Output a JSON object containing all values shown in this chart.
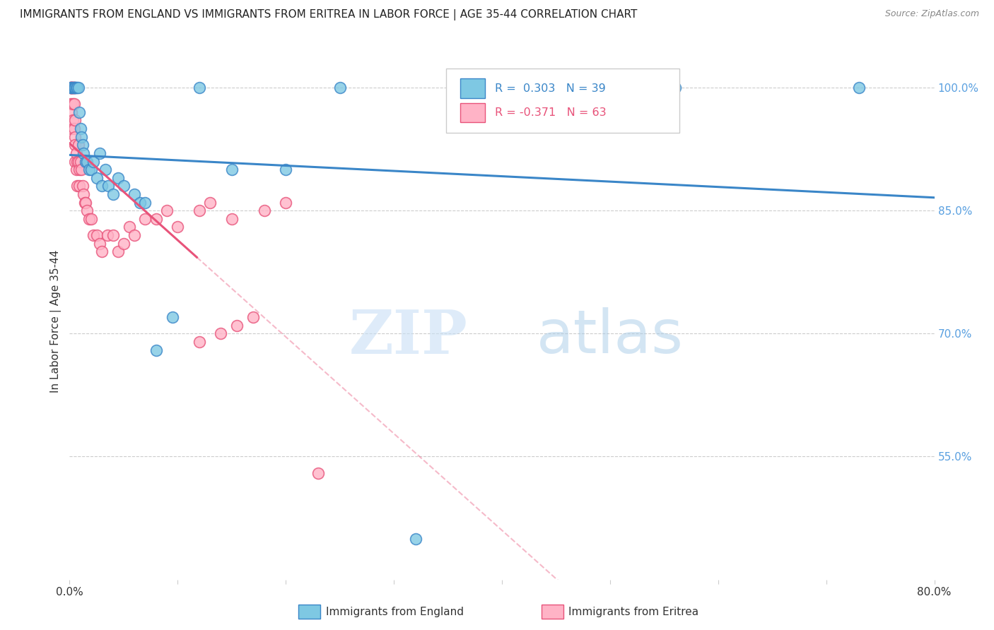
{
  "title": "IMMIGRANTS FROM ENGLAND VS IMMIGRANTS FROM ERITREA IN LABOR FORCE | AGE 35-44 CORRELATION CHART",
  "source": "Source: ZipAtlas.com",
  "ylabel": "In Labor Force | Age 35-44",
  "watermark_zip": "ZIP",
  "watermark_atlas": "atlas",
  "legend_england": "Immigrants from England",
  "legend_eritrea": "Immigrants from Eritrea",
  "R_england": 0.303,
  "N_england": 39,
  "R_eritrea": -0.371,
  "N_eritrea": 63,
  "x_min": 0.0,
  "x_max": 0.8,
  "y_min": 0.4,
  "y_max": 1.03,
  "y_ticks": [
    0.55,
    0.7,
    0.85,
    1.0
  ],
  "y_tick_labels": [
    "55.0%",
    "70.0%",
    "85.0%",
    "100.0%"
  ],
  "x_ticks": [
    0.0,
    0.1,
    0.2,
    0.3,
    0.4,
    0.5,
    0.6,
    0.7,
    0.8
  ],
  "x_tick_labels": [
    "0.0%",
    "",
    "",
    "",
    "",
    "",
    "",
    "",
    "80.0%"
  ],
  "color_england": "#7ec8e3",
  "color_eritrea": "#ffb3c6",
  "color_england_line": "#3a86c8",
  "color_eritrea_line": "#e8537a",
  "england_x": [
    0.001,
    0.002,
    0.003,
    0.004,
    0.005,
    0.005,
    0.006,
    0.007,
    0.008,
    0.009,
    0.01,
    0.011,
    0.012,
    0.013,
    0.015,
    0.016,
    0.018,
    0.02,
    0.022,
    0.025,
    0.028,
    0.03,
    0.033,
    0.036,
    0.04,
    0.045,
    0.05,
    0.06,
    0.065,
    0.07,
    0.08,
    0.095,
    0.12,
    0.15,
    0.2,
    0.25,
    0.32,
    0.56,
    0.73
  ],
  "england_y": [
    1.0,
    1.0,
    1.0,
    1.0,
    1.0,
    1.0,
    1.0,
    1.0,
    1.0,
    0.97,
    0.95,
    0.94,
    0.93,
    0.92,
    0.91,
    0.91,
    0.9,
    0.9,
    0.91,
    0.89,
    0.92,
    0.88,
    0.9,
    0.88,
    0.87,
    0.89,
    0.88,
    0.87,
    0.86,
    0.86,
    0.68,
    0.72,
    1.0,
    0.9,
    0.9,
    1.0,
    0.45,
    1.0,
    1.0
  ],
  "eritrea_x": [
    0.001,
    0.001,
    0.001,
    0.001,
    0.002,
    0.002,
    0.002,
    0.002,
    0.002,
    0.003,
    0.003,
    0.003,
    0.003,
    0.003,
    0.004,
    0.004,
    0.004,
    0.004,
    0.005,
    0.005,
    0.005,
    0.005,
    0.006,
    0.006,
    0.007,
    0.007,
    0.008,
    0.008,
    0.009,
    0.009,
    0.01,
    0.011,
    0.012,
    0.013,
    0.014,
    0.015,
    0.016,
    0.018,
    0.02,
    0.022,
    0.025,
    0.028,
    0.03,
    0.035,
    0.04,
    0.045,
    0.05,
    0.055,
    0.06,
    0.07,
    0.08,
    0.09,
    0.1,
    0.12,
    0.13,
    0.15,
    0.18,
    0.2,
    0.23,
    0.155,
    0.17,
    0.14,
    0.12
  ],
  "eritrea_y": [
    1.0,
    1.0,
    1.0,
    0.98,
    1.0,
    1.0,
    1.0,
    0.97,
    0.95,
    1.0,
    1.0,
    1.0,
    0.98,
    0.96,
    1.0,
    1.0,
    0.98,
    0.95,
    0.96,
    0.94,
    0.93,
    0.91,
    0.92,
    0.9,
    0.91,
    0.88,
    0.93,
    0.91,
    0.9,
    0.88,
    0.91,
    0.9,
    0.88,
    0.87,
    0.86,
    0.86,
    0.85,
    0.84,
    0.84,
    0.82,
    0.82,
    0.81,
    0.8,
    0.82,
    0.82,
    0.8,
    0.81,
    0.83,
    0.82,
    0.84,
    0.84,
    0.85,
    0.83,
    0.85,
    0.86,
    0.84,
    0.85,
    0.86,
    0.53,
    0.71,
    0.72,
    0.7,
    0.69
  ]
}
